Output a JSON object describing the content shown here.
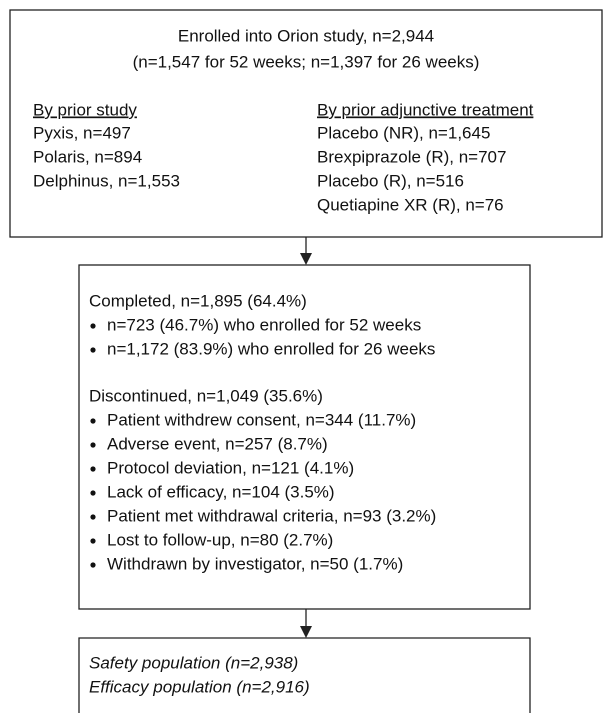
{
  "header": {
    "title": "Enrolled into Orion study, n=2,944",
    "subtitle": "(n=1,547 for 52 weeks; n=1,397 for 26 weeks)"
  },
  "by_prior_study": {
    "heading": "By prior study",
    "items": [
      "Pyxis, n=497",
      "Polaris, n=894",
      "Delphinus, n=1,553"
    ]
  },
  "by_prior_treatment": {
    "heading": "By prior adjunctive treatment",
    "items": [
      "Placebo (NR), n=1,645",
      "Brexpiprazole (R), n=707",
      "Placebo (R), n=516",
      "Quetiapine XR (R), n=76"
    ]
  },
  "completed": {
    "heading": "Completed, n=1,895 (64.4%)",
    "items": [
      "n=723 (46.7%) who enrolled for 52 weeks",
      "n=1,172 (83.9%) who enrolled for 26 weeks"
    ]
  },
  "discontinued": {
    "heading": "Discontinued, n=1,049 (35.6%)",
    "items": [
      "Patient withdrew consent, n=344 (11.7%)",
      "Adverse event, n=257 (8.7%)",
      "Protocol deviation, n=121 (4.1%)",
      "Lack of efficacy, n=104 (3.5%)",
      "Patient met withdrawal criteria, n=93 (3.2%)",
      "Lost to follow-up, n=80 (2.7%)",
      "Withdrawn by investigator, n=50 (1.7%)"
    ]
  },
  "populations": [
    "Safety population (n=2,938)",
    "Efficacy population (n=2,916)"
  ]
}
